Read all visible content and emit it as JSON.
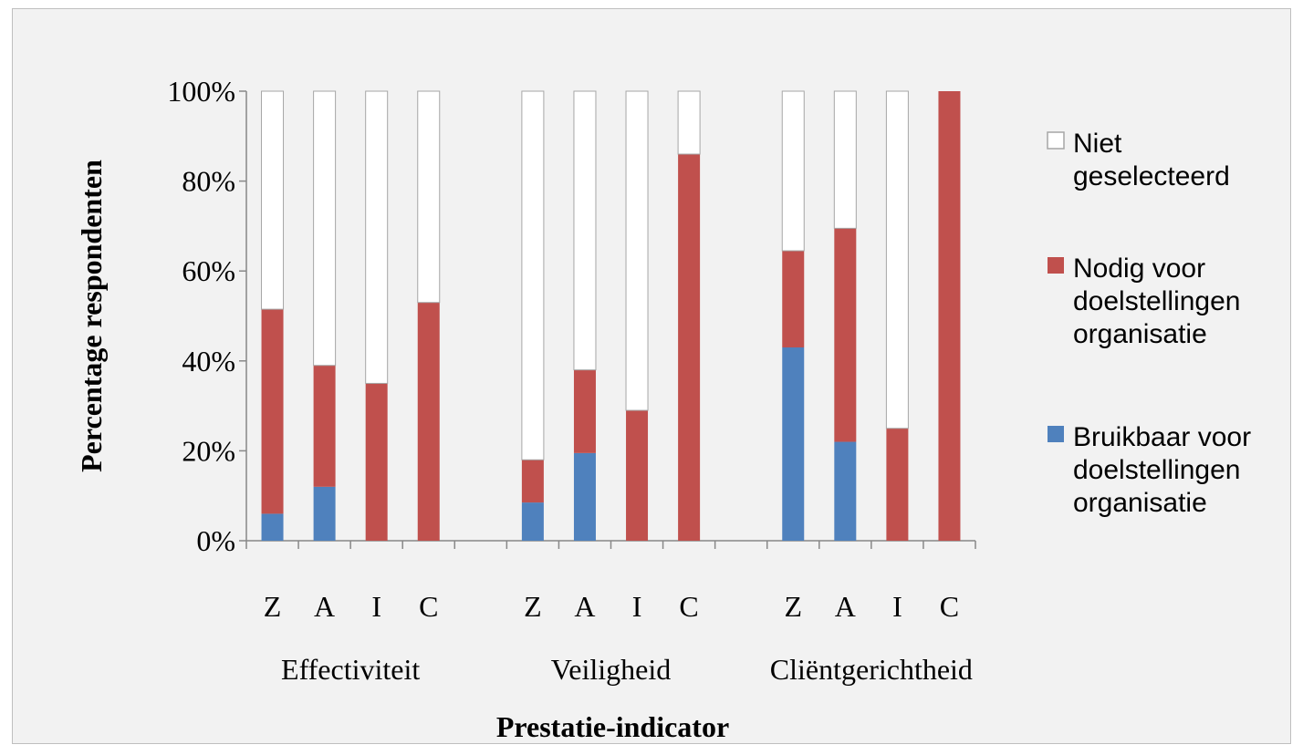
{
  "chart_data": {
    "type": "bar",
    "stacked": true,
    "stack_mode": "percent",
    "title": "",
    "xlabel": "Prestatie-indicator",
    "ylabel": "Percentage respondenten",
    "ylim": [
      0,
      100
    ],
    "y_ticks": [
      "0%",
      "20%",
      "40%",
      "60%",
      "80%",
      "100%"
    ],
    "grid": false,
    "legend_position": "right",
    "groups": [
      {
        "label": "Effectiviteit",
        "categories": [
          "Z",
          "A",
          "I",
          "C"
        ]
      },
      {
        "label": "Veiligheid",
        "categories": [
          "Z",
          "A",
          "I",
          "C"
        ]
      },
      {
        "label": "Cliëntgerichtheid",
        "categories": [
          "Z",
          "A",
          "I",
          "C"
        ]
      }
    ],
    "series": [
      {
        "name": "Bruikbaar voor doelstellingen organisatie",
        "legend_lines": [
          "Bruikbaar voor",
          "doelstellingen",
          "organisatie"
        ],
        "color": "#4f81bd",
        "values": [
          6,
          12,
          0,
          0,
          8.5,
          19.5,
          0,
          0,
          43,
          22,
          0,
          0
        ]
      },
      {
        "name": "Nodig voor doelstellingen organisatie",
        "legend_lines": [
          "Nodig voor",
          "doelstellingen",
          "organisatie"
        ],
        "color": "#c0504d",
        "values": [
          45.5,
          27,
          35,
          53,
          9.5,
          18.5,
          29,
          86,
          21.5,
          47.5,
          25,
          100
        ]
      },
      {
        "name": "Niet geselecteerd",
        "legend_lines": [
          "Niet",
          "geselecteerd"
        ],
        "color": "#ffffff",
        "values": [
          48.5,
          61,
          65,
          47,
          82,
          62,
          71,
          14,
          35.5,
          30.5,
          75,
          0
        ]
      }
    ]
  }
}
